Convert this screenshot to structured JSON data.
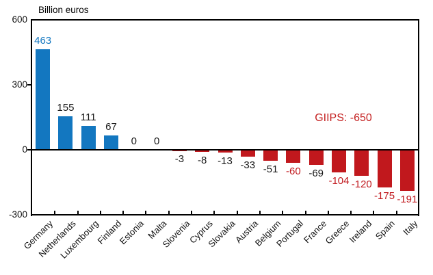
{
  "chart_data": {
    "type": "bar",
    "title": "Billion euros",
    "xlabel": "",
    "ylabel": "Billion euros",
    "categories": [
      "Germany",
      "Netherlands",
      "Luxembourg",
      "Finland",
      "Estonia",
      "Malta",
      "Slovenia",
      "Cyprus",
      "Slovakia",
      "Austria",
      "Belgium",
      "Portugal",
      "France",
      "Greece",
      "Ireland",
      "Spain",
      "Italy"
    ],
    "values": [
      463,
      155,
      111,
      67,
      0,
      0,
      -3,
      -8,
      -13,
      -33,
      -51,
      -60,
      -69,
      -104,
      -120,
      -175,
      -191
    ],
    "value_labels": [
      "463",
      "155",
      "111",
      "67",
      "0",
      "0",
      "-3",
      "-8",
      "-13",
      "-33",
      "-51",
      "-60",
      "-69",
      "-104",
      "-120",
      "-175",
      "-191"
    ],
    "label_colors": [
      "blue",
      "black",
      "black",
      "black",
      "black",
      "black",
      "black",
      "black",
      "black",
      "black",
      "black",
      "red",
      "black",
      "red",
      "red",
      "red",
      "red"
    ],
    "annotations": [
      {
        "text": "GIIPS: -650",
        "color": "#c42020"
      }
    ],
    "yticks": [
      600,
      300,
      0,
      -300
    ],
    "ylim": [
      -300,
      600
    ],
    "grid": false,
    "legend": "none",
    "palette": {
      "positive_bar": "#1377c0",
      "negative_bar": "#c1181d",
      "label_blue": "#1377c0",
      "label_red": "#c1181d",
      "label_black": "#1a1a1a",
      "axis": "#000000"
    }
  }
}
